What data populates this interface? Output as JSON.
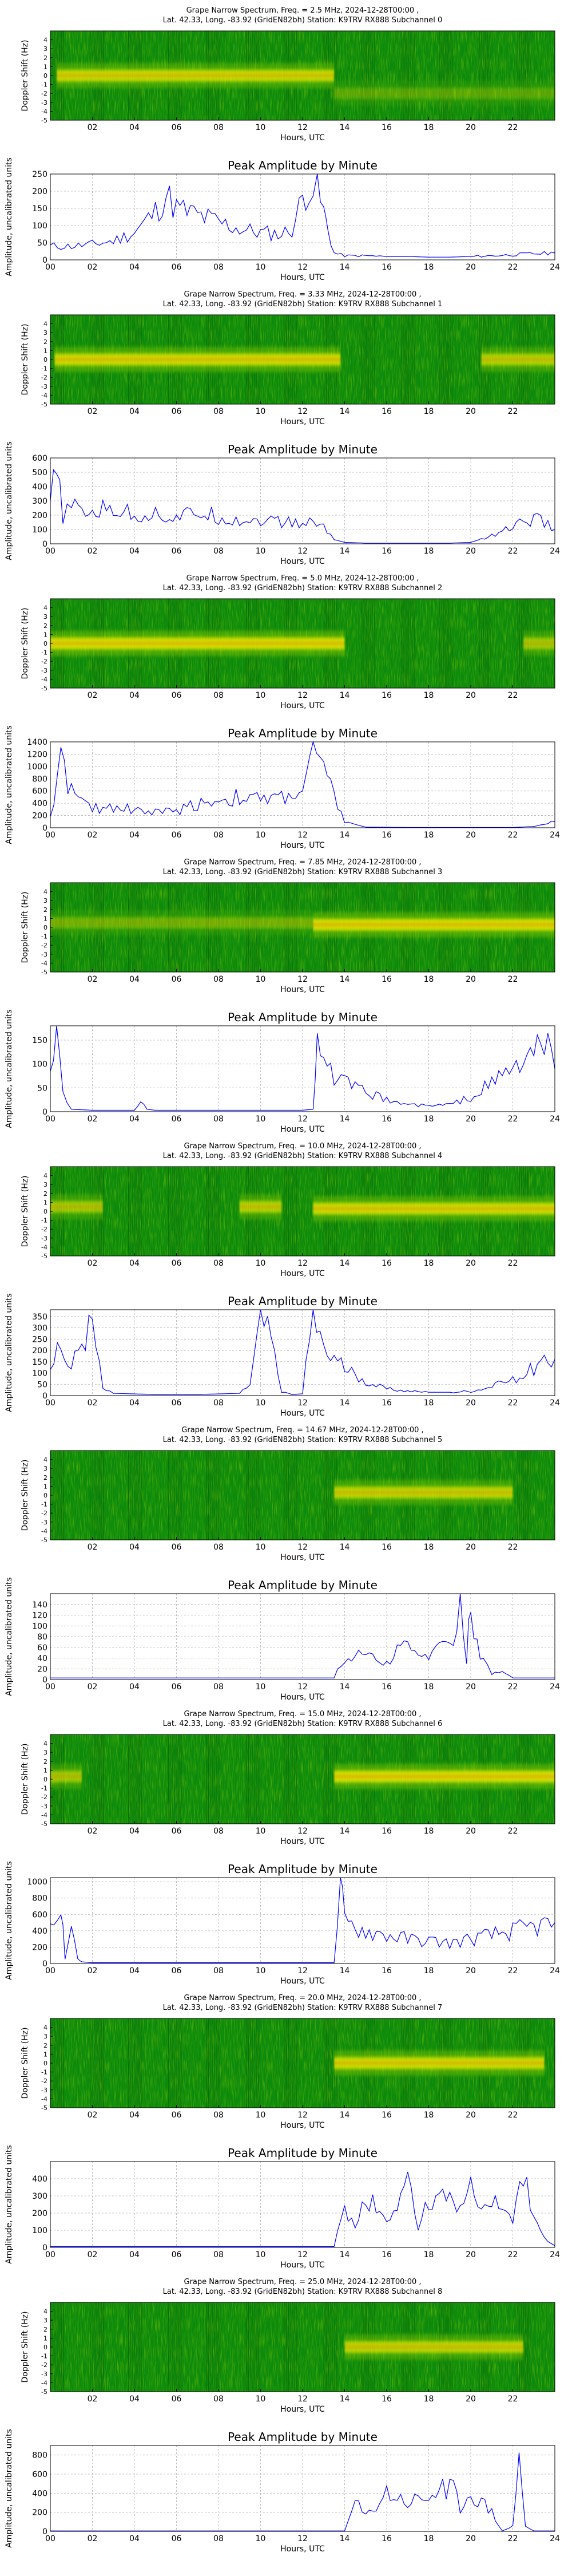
{
  "figure": {
    "x_label": "Hours, UTC",
    "doppler_y_label": "Doppler Shift (Hz)",
    "amp_title": "Peak Amplitude by Minute",
    "amp_y_label": "Amplitude, uncalibrated units",
    "spec_x_ticks": [
      "02",
      "04",
      "06",
      "08",
      "10",
      "12",
      "14",
      "16",
      "18",
      "20",
      "22"
    ],
    "amp_x_ticks": [
      "00",
      "02",
      "04",
      "06",
      "08",
      "10",
      "12",
      "14",
      "16",
      "18",
      "20",
      "22",
      "24"
    ],
    "doppler_ticks": [
      "4",
      "3",
      "2",
      "1",
      "0",
      "-1",
      "-2",
      "-3",
      "-4",
      "-5"
    ],
    "colors": {
      "spectrogram_bg": "#0c8a0c",
      "spectrogram_mid": "#7cc400",
      "spectrogram_hot": "#f2f200",
      "spectrogram_peak": "#e86000",
      "amp_line": "#0000ff",
      "grid": "#b0b0b0"
    }
  },
  "chart_data": [
    {
      "type": "heatmap",
      "panel": "spectrogram",
      "channel": 0,
      "title": "Grape Narrow Spectrum, Freq. = 2.5 MHz, 2024-12-28T00:00 ,",
      "subtitle": "Lat. 42.33, Long. -83.92 (GridEN82bh) Station: K9TRV RX888 Subchannel 0",
      "xlabel": "Hours, UTC",
      "ylabel": "Doppler Shift (Hz)",
      "xlim": [
        0,
        24
      ],
      "ylim": [
        -5,
        5
      ],
      "signal": [
        {
          "start": 0.3,
          "end": 13.5,
          "doppler": 0.0,
          "intensity": 0.8
        },
        {
          "start": 13.5,
          "end": 24,
          "doppler": -2.0,
          "intensity": 0.25
        }
      ]
    },
    {
      "type": "line",
      "panel": "amplitude",
      "channel": 0,
      "title": "Peak Amplitude by Minute",
      "xlabel": "Hours, UTC",
      "ylabel": "Amplitude, uncalibrated units",
      "xlim": [
        0,
        24
      ],
      "ylim": [
        0,
        250
      ],
      "yticks": [
        0,
        50,
        100,
        150,
        200,
        250
      ],
      "x": [
        0,
        1,
        2,
        3,
        4,
        5,
        5.5,
        6,
        7,
        8,
        9,
        10,
        11,
        11.5,
        12,
        12.3,
        12.7,
        13,
        13.2,
        13.5,
        14,
        15,
        16,
        17,
        18,
        19,
        20,
        21,
        22,
        23,
        24
      ],
      "y": [
        40,
        40,
        45,
        55,
        80,
        140,
        190,
        150,
        130,
        110,
        90,
        80,
        75,
        90,
        180,
        220,
        200,
        140,
        90,
        20,
        12,
        12,
        10,
        10,
        8,
        8,
        10,
        12,
        15,
        18,
        20
      ]
    },
    {
      "type": "heatmap",
      "panel": "spectrogram",
      "channel": 1,
      "title": "Grape Narrow Spectrum, Freq. = 3.33 MHz, 2024-12-28T00:00 ,",
      "subtitle": "Lat. 42.33, Long. -83.92 (GridEN82bh) Station: K9TRV RX888 Subchannel 1",
      "xlabel": "Hours, UTC",
      "ylabel": "Doppler Shift (Hz)",
      "xlim": [
        0,
        24
      ],
      "ylim": [
        -5,
        5
      ],
      "signal": [
        {
          "start": 0.2,
          "end": 13.8,
          "doppler": 0.0,
          "intensity": 0.85
        },
        {
          "start": 20.5,
          "end": 24,
          "doppler": 0.0,
          "intensity": 0.7
        }
      ]
    },
    {
      "type": "line",
      "panel": "amplitude",
      "channel": 1,
      "title": "Peak Amplitude by Minute",
      "xlabel": "Hours, UTC",
      "ylabel": "Amplitude, uncalibrated units",
      "xlim": [
        0,
        24
      ],
      "ylim": [
        0,
        600
      ],
      "yticks": [
        0,
        100,
        200,
        300,
        400,
        500,
        600
      ],
      "x": [
        0,
        0.3,
        0.6,
        1,
        2,
        3,
        4,
        5,
        6,
        7,
        8,
        9,
        10,
        11,
        12,
        12.5,
        13,
        13.5,
        14,
        15,
        16,
        17,
        18,
        19,
        20,
        21,
        22,
        23,
        24
      ],
      "y": [
        300,
        500,
        200,
        250,
        220,
        250,
        200,
        210,
        180,
        220,
        190,
        160,
        170,
        150,
        140,
        150,
        120,
        30,
        10,
        5,
        5,
        5,
        5,
        5,
        10,
        60,
        120,
        180,
        100
      ]
    },
    {
      "type": "heatmap",
      "panel": "spectrogram",
      "channel": 2,
      "title": "Grape Narrow Spectrum, Freq. = 5.0 MHz, 2024-12-28T00:00 ,",
      "subtitle": "Lat. 42.33, Long. -83.92 (GridEN82bh) Station: K9TRV RX888 Subchannel 2",
      "xlabel": "Hours, UTC",
      "ylabel": "Doppler Shift (Hz)",
      "xlim": [
        0,
        24
      ],
      "ylim": [
        -5,
        5
      ],
      "signal": [
        {
          "start": 0.0,
          "end": 14.0,
          "doppler": 0.0,
          "intensity": 0.9
        },
        {
          "start": 22.5,
          "end": 24,
          "doppler": 0.0,
          "intensity": 0.6
        }
      ]
    },
    {
      "type": "line",
      "panel": "amplitude",
      "channel": 2,
      "title": "Peak Amplitude by Minute",
      "xlabel": "Hours, UTC",
      "ylabel": "Amplitude, uncalibrated units",
      "xlim": [
        0,
        24
      ],
      "ylim": [
        0,
        1400
      ],
      "yticks": [
        0,
        200,
        400,
        600,
        800,
        1000,
        1200,
        1400
      ],
      "x": [
        0,
        0.5,
        1,
        1.5,
        2,
        3,
        4,
        5,
        6,
        7,
        8,
        9,
        10,
        11,
        12,
        12.5,
        13,
        13.5,
        14,
        15,
        16,
        17,
        18,
        19,
        20,
        21,
        22,
        23,
        23.5,
        24
      ],
      "y": [
        200,
        1100,
        600,
        400,
        300,
        350,
        300,
        250,
        280,
        400,
        450,
        500,
        450,
        500,
        600,
        1250,
        900,
        500,
        100,
        10,
        8,
        5,
        5,
        5,
        5,
        5,
        5,
        20,
        60,
        100
      ]
    },
    {
      "type": "heatmap",
      "panel": "spectrogram",
      "channel": 3,
      "title": "Grape Narrow Spectrum, Freq. = 7.85 MHz, 2024-12-28T00:00 ,",
      "subtitle": "Lat. 42.33, Long. -83.92 (GridEN82bh) Station: K9TRV RX888 Subchannel 3",
      "xlabel": "Hours, UTC",
      "ylabel": "Doppler Shift (Hz)",
      "xlim": [
        0,
        24
      ],
      "ylim": [
        -5,
        5
      ],
      "signal": [
        {
          "start": 0.0,
          "end": 12.5,
          "doppler": 0.5,
          "intensity": 0.35
        },
        {
          "start": 12.5,
          "end": 24,
          "doppler": 0.3,
          "intensity": 0.9
        }
      ]
    },
    {
      "type": "line",
      "panel": "amplitude",
      "channel": 3,
      "title": "Peak Amplitude by Minute",
      "xlabel": "Hours, UTC",
      "ylabel": "Amplitude, uncalibrated units",
      "xlim": [
        0,
        24
      ],
      "ylim": [
        0,
        180
      ],
      "yticks": [
        0,
        50,
        100,
        150
      ],
      "x": [
        0,
        0.3,
        0.6,
        1,
        2,
        3,
        4,
        4.3,
        4.6,
        5,
        6,
        8,
        10,
        12,
        12.5,
        12.7,
        13,
        14,
        15,
        16,
        17,
        18,
        19,
        20,
        21,
        22,
        23,
        23.5,
        24
      ],
      "y": [
        100,
        170,
        40,
        5,
        3,
        3,
        3,
        25,
        5,
        3,
        3,
        3,
        3,
        3,
        5,
        170,
        90,
        60,
        40,
        25,
        15,
        12,
        15,
        30,
        60,
        90,
        120,
        150,
        90
      ]
    },
    {
      "type": "heatmap",
      "panel": "spectrogram",
      "channel": 4,
      "title": "Grape Narrow Spectrum, Freq. = 10.0 MHz, 2024-12-28T00:00 ,",
      "subtitle": "Lat. 42.33, Long. -83.92 (GridEN82bh) Station: K9TRV RX888 Subchannel 4",
      "xlabel": "Hours, UTC",
      "ylabel": "Doppler Shift (Hz)",
      "xlim": [
        0,
        24
      ],
      "ylim": [
        -5,
        5
      ],
      "signal": [
        {
          "start": 0.0,
          "end": 2.5,
          "doppler": 0.5,
          "intensity": 0.6
        },
        {
          "start": 9.0,
          "end": 11.0,
          "doppler": 0.5,
          "intensity": 0.7
        },
        {
          "start": 12.5,
          "end": 24,
          "doppler": 0.3,
          "intensity": 0.85
        }
      ]
    },
    {
      "type": "line",
      "panel": "amplitude",
      "channel": 4,
      "title": "Peak Amplitude by Minute",
      "xlabel": "Hours, UTC",
      "ylabel": "Amplitude, uncalibrated units",
      "xlim": [
        0,
        24
      ],
      "ylim": [
        0,
        380
      ],
      "yticks": [
        0,
        50,
        100,
        150,
        200,
        250,
        300,
        350
      ],
      "x": [
        0,
        0.5,
        1,
        1.5,
        2,
        2.5,
        3,
        5,
        7,
        9,
        9.5,
        10,
        10.5,
        11,
        11.5,
        12,
        12.5,
        13,
        13.5,
        14,
        15,
        16,
        17,
        18,
        19,
        20,
        21,
        22,
        23,
        24
      ],
      "y": [
        150,
        200,
        120,
        250,
        320,
        30,
        10,
        5,
        5,
        10,
        50,
        340,
        250,
        20,
        5,
        8,
        370,
        200,
        150,
        120,
        60,
        30,
        20,
        15,
        15,
        20,
        40,
        70,
        120,
        160
      ]
    },
    {
      "type": "heatmap",
      "panel": "spectrogram",
      "channel": 5,
      "title": "Grape Narrow Spectrum, Freq. = 14.67 MHz, 2024-12-28T00:00 ,",
      "subtitle": "Lat. 42.33, Long. -83.92 (GridEN82bh) Station: K9TRV RX888 Subchannel 5",
      "xlabel": "Hours, UTC",
      "ylabel": "Doppler Shift (Hz)",
      "xlim": [
        0,
        24
      ],
      "ylim": [
        -5,
        5
      ],
      "signal": [
        {
          "start": 13.5,
          "end": 22.0,
          "doppler": 0.3,
          "intensity": 0.75
        }
      ]
    },
    {
      "type": "line",
      "panel": "amplitude",
      "channel": 5,
      "title": "Peak Amplitude by Minute",
      "xlabel": "Hours, UTC",
      "ylabel": "Amplitude, uncalibrated units",
      "xlim": [
        0,
        24
      ],
      "ylim": [
        0,
        160
      ],
      "yticks": [
        0,
        20,
        40,
        60,
        80,
        100,
        120,
        140
      ],
      "x": [
        0,
        4,
        8,
        12,
        13.5,
        14,
        15,
        16,
        17,
        17.5,
        18,
        19,
        19.5,
        19.8,
        20,
        20.3,
        20.6,
        21,
        21.5,
        22,
        23,
        24
      ],
      "y": [
        3,
        3,
        3,
        3,
        3,
        40,
        50,
        30,
        70,
        40,
        50,
        60,
        140,
        40,
        150,
        60,
        40,
        10,
        15,
        3,
        3,
        3
      ]
    },
    {
      "type": "heatmap",
      "panel": "spectrogram",
      "channel": 6,
      "title": "Grape Narrow Spectrum, Freq. = 15.0 MHz, 2024-12-28T00:00 ,",
      "subtitle": "Lat. 42.33, Long. -83.92 (GridEN82bh) Station: K9TRV RX888 Subchannel 6",
      "xlabel": "Hours, UTC",
      "ylabel": "Doppler Shift (Hz)",
      "xlim": [
        0,
        24
      ],
      "ylim": [
        -5,
        5
      ],
      "signal": [
        {
          "start": 0.0,
          "end": 1.5,
          "doppler": 0.3,
          "intensity": 0.6
        },
        {
          "start": 13.5,
          "end": 24,
          "doppler": 0.3,
          "intensity": 0.9
        }
      ]
    },
    {
      "type": "line",
      "panel": "amplitude",
      "channel": 6,
      "title": "Peak Amplitude by Minute",
      "xlabel": "Hours, UTC",
      "ylabel": "Amplitude, uncalibrated units",
      "xlim": [
        0,
        24
      ],
      "ylim": [
        0,
        1050
      ],
      "yticks": [
        0,
        200,
        400,
        600,
        800,
        1000
      ],
      "x": [
        0,
        0.5,
        0.7,
        1,
        1.3,
        1.5,
        2,
        4,
        8,
        12,
        13.5,
        13.8,
        14,
        15,
        16,
        17,
        18,
        19,
        20,
        21,
        22,
        23,
        24
      ],
      "y": [
        400,
        700,
        50,
        600,
        50,
        20,
        10,
        10,
        10,
        10,
        10,
        1000,
        500,
        400,
        350,
        300,
        280,
        250,
        300,
        350,
        400,
        450,
        500
      ]
    },
    {
      "type": "heatmap",
      "panel": "spectrogram",
      "channel": 7,
      "title": "Grape Narrow Spectrum, Freq. = 20.0 MHz, 2024-12-28T00:00 ,",
      "subtitle": "Lat. 42.33, Long. -83.92 (GridEN82bh) Station: K9TRV RX888 Subchannel 7",
      "xlabel": "Hours, UTC",
      "ylabel": "Doppler Shift (Hz)",
      "xlim": [
        0,
        24
      ],
      "ylim": [
        -5,
        5
      ],
      "signal": [
        {
          "start": 13.5,
          "end": 23.5,
          "doppler": 0.0,
          "intensity": 0.85
        }
      ]
    },
    {
      "type": "line",
      "panel": "amplitude",
      "channel": 7,
      "title": "Peak Amplitude by Minute",
      "xlabel": "Hours, UTC",
      "ylabel": "Amplitude, uncalibrated units",
      "xlim": [
        0,
        24
      ],
      "ylim": [
        0,
        500
      ],
      "yticks": [
        0,
        100,
        200,
        300,
        400
      ],
      "x": [
        0,
        4,
        8,
        12,
        13.5,
        14,
        14.5,
        15,
        16,
        17,
        17.5,
        18,
        19,
        20,
        21,
        21.5,
        22,
        22.5,
        23,
        23.5,
        24
      ],
      "y": [
        5,
        5,
        5,
        5,
        5,
        250,
        100,
        300,
        150,
        400,
        100,
        300,
        250,
        350,
        200,
        300,
        150,
        450,
        150,
        50,
        10
      ]
    },
    {
      "type": "heatmap",
      "panel": "spectrogram",
      "channel": 8,
      "title": "Grape Narrow Spectrum, Freq. = 25.0 MHz, 2024-12-28T00:00 ,",
      "subtitle": "Lat. 42.33, Long. -83.92 (GridEN82bh) Station: K9TRV RX888 Subchannel 8",
      "xlabel": "Hours, UTC",
      "ylabel": "Doppler Shift (Hz)",
      "xlim": [
        0,
        24
      ],
      "ylim": [
        -5,
        5
      ],
      "signal": [
        {
          "start": 14.0,
          "end": 22.5,
          "doppler": 0.0,
          "intensity": 0.75
        }
      ]
    },
    {
      "type": "line",
      "panel": "amplitude",
      "channel": 8,
      "title": "Peak Amplitude by Minute",
      "xlabel": "Hours, UTC",
      "ylabel": "Amplitude, uncalibrated units",
      "xlim": [
        0,
        24
      ],
      "ylim": [
        0,
        900
      ],
      "yticks": [
        0,
        200,
        400,
        600,
        800
      ],
      "x": [
        0,
        4,
        8,
        12,
        14,
        14.5,
        15,
        16,
        17,
        18,
        19,
        19.5,
        20,
        20.5,
        21,
        21.5,
        22,
        22.3,
        22.6,
        23,
        24
      ],
      "y": [
        5,
        5,
        5,
        5,
        5,
        300,
        150,
        400,
        300,
        350,
        500,
        250,
        400,
        300,
        200,
        5,
        50,
        850,
        50,
        5,
        5
      ]
    }
  ]
}
